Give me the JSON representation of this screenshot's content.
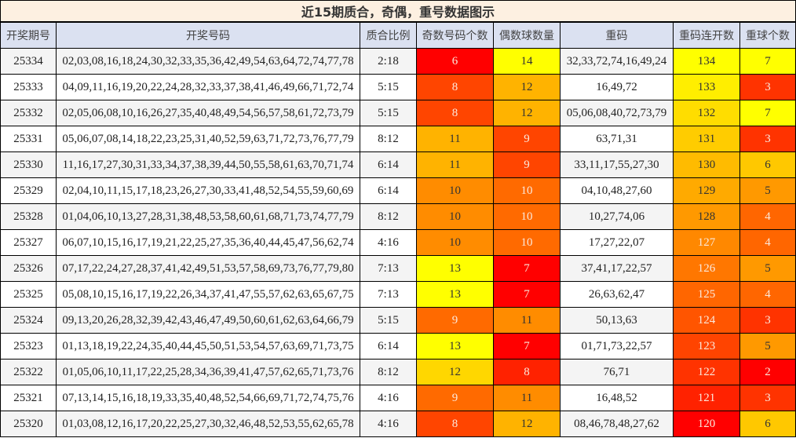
{
  "title": "近15期质合，奇偶，重号数据图示",
  "headers": [
    "开奖期号",
    "开奖号码",
    "质合比例",
    "奇数号码个数",
    "偶数球数量",
    "重码",
    "重码连开数",
    "重球个数"
  ],
  "rows": [
    {
      "issue": "25334",
      "numbers": "02,03,08,16,18,24,30,32,33,35,36,42,49,54,63,64,72,74,77,78",
      "ratio": "2:18",
      "odd": "6",
      "even": "14",
      "repeat": "32,33,72,74,16,49,24",
      "streak": "134",
      "repeat_count": "7"
    },
    {
      "issue": "25333",
      "numbers": "04,09,11,16,19,20,22,24,28,32,33,37,38,41,46,49,66,71,72,74",
      "ratio": "5:15",
      "odd": "8",
      "even": "12",
      "repeat": "16,49,72",
      "streak": "133",
      "repeat_count": "3"
    },
    {
      "issue": "25332",
      "numbers": "02,05,06,08,10,16,26,27,35,40,48,49,54,56,57,58,61,72,73,79",
      "ratio": "5:15",
      "odd": "8",
      "even": "12",
      "repeat": "05,06,08,40,72,73,79",
      "streak": "132",
      "repeat_count": "7"
    },
    {
      "issue": "25331",
      "numbers": "05,06,07,08,14,18,22,23,25,31,40,52,59,63,71,72,73,76,77,79",
      "ratio": "8:12",
      "odd": "11",
      "even": "9",
      "repeat": "63,71,31",
      "streak": "131",
      "repeat_count": "3"
    },
    {
      "issue": "25330",
      "numbers": "11,16,17,27,30,31,33,34,37,38,39,44,50,55,58,61,63,70,71,74",
      "ratio": "6:14",
      "odd": "11",
      "even": "9",
      "repeat": "33,11,17,55,27,30",
      "streak": "130",
      "repeat_count": "6"
    },
    {
      "issue": "25329",
      "numbers": "02,04,10,11,15,17,18,23,26,27,30,33,41,48,52,54,55,59,60,69",
      "ratio": "6:14",
      "odd": "10",
      "even": "10",
      "repeat": "04,10,48,27,60",
      "streak": "129",
      "repeat_count": "5"
    },
    {
      "issue": "25328",
      "numbers": "01,04,06,10,13,27,28,31,38,48,53,58,60,61,68,71,73,74,77,79",
      "ratio": "8:12",
      "odd": "10",
      "even": "10",
      "repeat": "10,27,74,06",
      "streak": "128",
      "repeat_count": "4"
    },
    {
      "issue": "25327",
      "numbers": "06,07,10,15,16,17,19,21,22,25,27,35,36,40,44,45,47,56,62,74",
      "ratio": "4:16",
      "odd": "10",
      "even": "10",
      "repeat": "17,27,22,07",
      "streak": "127",
      "repeat_count": "4"
    },
    {
      "issue": "25326",
      "numbers": "07,17,22,24,27,28,37,41,42,49,51,53,57,58,69,73,76,77,79,80",
      "ratio": "7:13",
      "odd": "13",
      "even": "7",
      "repeat": "37,41,17,22,57",
      "streak": "126",
      "repeat_count": "5"
    },
    {
      "issue": "25325",
      "numbers": "05,08,10,15,16,17,19,22,26,34,37,41,47,55,57,62,63,65,67,75",
      "ratio": "7:13",
      "odd": "13",
      "even": "7",
      "repeat": "26,63,62,47",
      "streak": "125",
      "repeat_count": "4"
    },
    {
      "issue": "25324",
      "numbers": "09,13,20,26,28,32,39,42,43,46,47,49,50,60,61,62,63,64,66,79",
      "ratio": "5:15",
      "odd": "9",
      "even": "11",
      "repeat": "50,13,63",
      "streak": "124",
      "repeat_count": "3"
    },
    {
      "issue": "25323",
      "numbers": "01,13,18,19,22,24,35,40,44,45,50,51,53,54,57,63,69,71,73,75",
      "ratio": "6:14",
      "odd": "13",
      "even": "7",
      "repeat": "01,71,73,22,57",
      "streak": "123",
      "repeat_count": "5"
    },
    {
      "issue": "25322",
      "numbers": "01,05,06,10,11,17,22,25,28,34,36,39,41,47,57,62,65,71,73,76",
      "ratio": "8:12",
      "odd": "12",
      "even": "8",
      "repeat": "76,71",
      "streak": "122",
      "repeat_count": "2"
    },
    {
      "issue": "25321",
      "numbers": "07,13,14,15,16,18,19,33,35,40,48,52,54,66,69,71,72,74,75,76",
      "ratio": "4:16",
      "odd": "9",
      "even": "11",
      "repeat": "16,48,52",
      "streak": "121",
      "repeat_count": "3"
    },
    {
      "issue": "25320",
      "numbers": "01,03,08,12,16,17,20,22,25,27,30,32,46,48,52,53,55,62,65,78",
      "ratio": "4:16",
      "odd": "8",
      "even": "12",
      "repeat": "08,46,78,48,27,62",
      "streak": "120",
      "repeat_count": "6"
    }
  ],
  "heat_colors": {
    "odd": [
      "#ff0000",
      "#ff4500",
      "#ff4500",
      "#ffb300",
      "#ffb300",
      "#ff8c00",
      "#ff8c00",
      "#ff8c00",
      "#ffff00",
      "#ffff00",
      "#ff6a00",
      "#ffff00",
      "#ffd700",
      "#ff6a00",
      "#ff4500"
    ],
    "even": [
      "#ffff00",
      "#ffb300",
      "#ffb300",
      "#ff4500",
      "#ff4500",
      "#ff6a00",
      "#ff6a00",
      "#ff6a00",
      "#ff0000",
      "#ff0000",
      "#ff8c00",
      "#ff0000",
      "#ff2200",
      "#ff8c00",
      "#ffb300"
    ],
    "streak": [
      "#ffff00",
      "#ffee00",
      "#ffdd00",
      "#ffcc00",
      "#ffbb00",
      "#ffaa00",
      "#ff9900",
      "#ff8800",
      "#ff7700",
      "#ff6600",
      "#ff5500",
      "#ff4400",
      "#ff3300",
      "#ff2200",
      "#ff0000"
    ],
    "repeat_count": [
      "#ffff00",
      "#ff3300",
      "#ffff00",
      "#ff3300",
      "#ffc800",
      "#ff9900",
      "#ff6600",
      "#ff6600",
      "#ff9900",
      "#ff6600",
      "#ff3300",
      "#ff9900",
      "#ff0000",
      "#ff3300",
      "#ffc800"
    ]
  },
  "chart_data": {
    "type": "table",
    "title": "近15期质合，奇偶，重号数据图示",
    "columns": [
      "开奖期号",
      "开奖号码",
      "质合比例",
      "奇数号码个数",
      "偶数球数量",
      "重码",
      "重码连开数",
      "重球个数"
    ],
    "categories": [
      "25334",
      "25333",
      "25332",
      "25331",
      "25330",
      "25329",
      "25328",
      "25327",
      "25326",
      "25325",
      "25324",
      "25323",
      "25322",
      "25321",
      "25320"
    ],
    "series": [
      {
        "name": "奇数号码个数",
        "values": [
          6,
          8,
          8,
          11,
          11,
          10,
          10,
          10,
          13,
          13,
          9,
          13,
          12,
          9,
          8
        ]
      },
      {
        "name": "偶数球数量",
        "values": [
          14,
          12,
          12,
          9,
          9,
          10,
          10,
          10,
          7,
          7,
          11,
          7,
          8,
          11,
          12
        ]
      },
      {
        "name": "重码连开数",
        "values": [
          134,
          133,
          132,
          131,
          130,
          129,
          128,
          127,
          126,
          125,
          124,
          123,
          122,
          121,
          120
        ]
      },
      {
        "name": "重球个数",
        "values": [
          7,
          3,
          7,
          3,
          6,
          5,
          4,
          4,
          5,
          4,
          3,
          5,
          2,
          3,
          6
        ]
      }
    ],
    "ratios": [
      "2:18",
      "5:15",
      "5:15",
      "8:12",
      "6:14",
      "6:14",
      "8:12",
      "4:16",
      "7:13",
      "7:13",
      "5:15",
      "6:14",
      "8:12",
      "4:16",
      "4:16"
    ]
  }
}
